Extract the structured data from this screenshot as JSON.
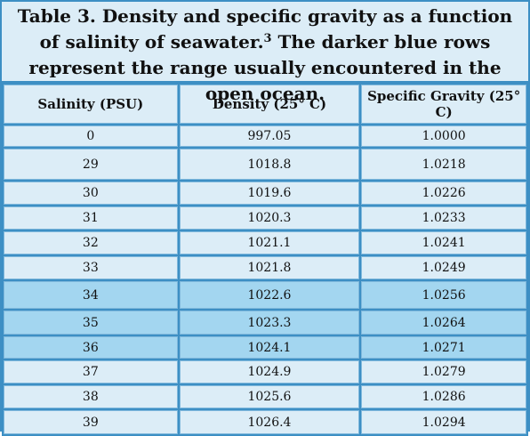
{
  "header": {
    "title_before": "Table 3.  Density and specific gravity as a function of salinity of seawater.",
    "title_sup": "3",
    "title_after": " The darker blue rows represent the range usually encountered in the open ocean."
  },
  "table": {
    "columns": [
      "Salinity (PSU)",
      "Density (25° C)",
      "Specific Gravity (25° C)"
    ],
    "rows": [
      {
        "cells": [
          "0",
          "997.05",
          "1.0000"
        ],
        "dark": false
      },
      {
        "cells": [
          "29",
          "1018.8",
          "1.0218"
        ],
        "dark": false
      },
      {
        "cells": [
          "30",
          "1019.6",
          "1.0226"
        ],
        "dark": false
      },
      {
        "cells": [
          "31",
          "1020.3",
          "1.0233"
        ],
        "dark": false
      },
      {
        "cells": [
          "32",
          "1021.1",
          "1.0241"
        ],
        "dark": false
      },
      {
        "cells": [
          "33",
          "1021.8",
          "1.0249"
        ],
        "dark": false
      },
      {
        "cells": [
          "34",
          "1022.6",
          "1.0256"
        ],
        "dark": true
      },
      {
        "cells": [
          "35",
          "1023.3",
          "1.0264"
        ],
        "dark": true
      },
      {
        "cells": [
          "36",
          "1024.1",
          "1.0271"
        ],
        "dark": true
      },
      {
        "cells": [
          "37",
          "1024.9",
          "1.0279"
        ],
        "dark": false
      },
      {
        "cells": [
          "38",
          "1025.6",
          "1.0286"
        ],
        "dark": false
      },
      {
        "cells": [
          "39",
          "1026.4",
          "1.0294"
        ],
        "dark": false
      }
    ]
  }
}
